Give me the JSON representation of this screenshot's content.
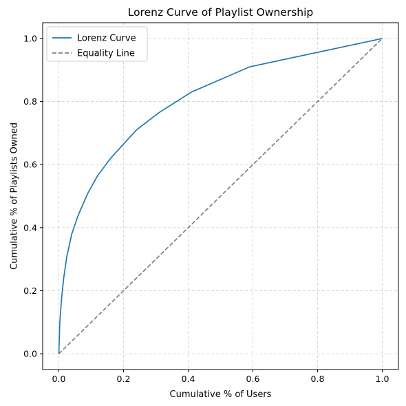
{
  "chart_data": {
    "type": "line",
    "title": "Lorenz Curve of Playlist Ownership",
    "xlabel": "Cumulative % of Users",
    "ylabel": "Cumulative % of Playlists Owned",
    "xlim": [
      -0.05,
      1.05
    ],
    "ylim": [
      -0.05,
      1.05
    ],
    "xticks": [
      "0.0",
      "0.2",
      "0.4",
      "0.6",
      "0.8",
      "1.0"
    ],
    "yticks": [
      "0.0",
      "0.2",
      "0.4",
      "0.6",
      "0.8",
      "1.0"
    ],
    "grid": true,
    "legend_position": "top-left",
    "series": [
      {
        "name": "Lorenz Curve",
        "style": "solid",
        "color": "#1f77b4",
        "x": [
          0.0,
          0.003,
          0.008,
          0.015,
          0.025,
          0.04,
          0.06,
          0.09,
          0.12,
          0.16,
          0.2,
          0.24,
          0.31,
          0.41,
          0.59,
          1.0
        ],
        "y": [
          0.0,
          0.1,
          0.17,
          0.24,
          0.31,
          0.38,
          0.44,
          0.51,
          0.565,
          0.62,
          0.665,
          0.71,
          0.765,
          0.83,
          0.91,
          1.0
        ]
      },
      {
        "name": "Equality Line",
        "style": "dashed",
        "color": "#7f7f7f",
        "x": [
          0.0,
          1.0
        ],
        "y": [
          0.0,
          1.0
        ]
      }
    ]
  }
}
